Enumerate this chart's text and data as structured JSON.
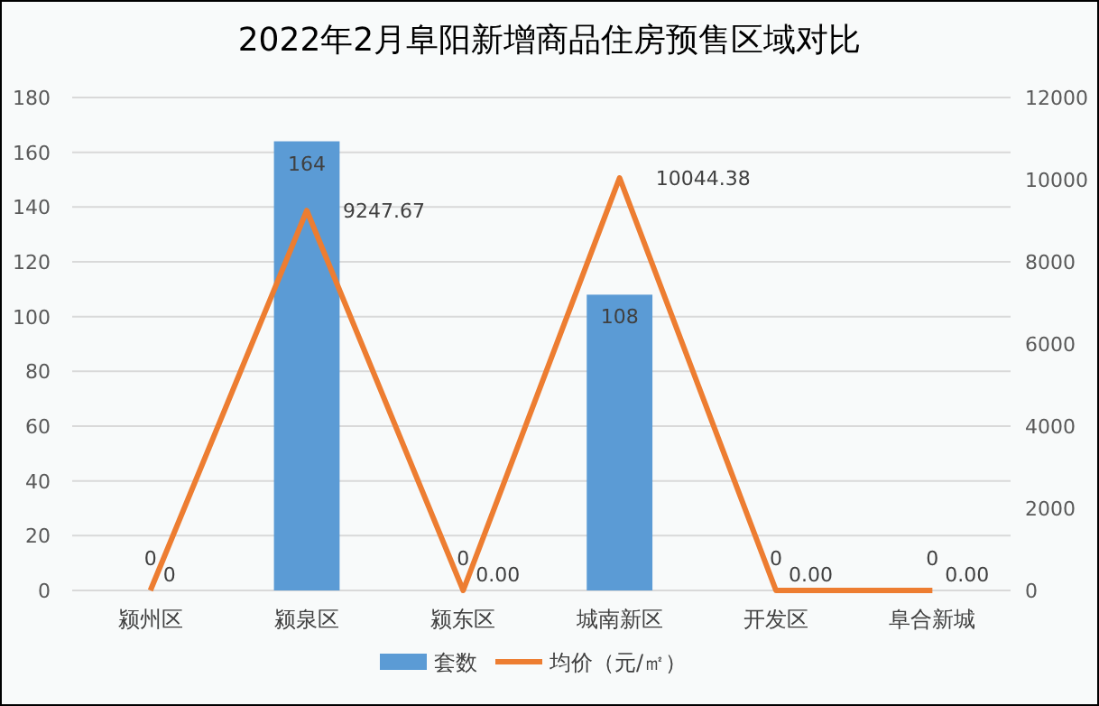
{
  "chart_data": {
    "type": "bar",
    "title": "2022年2月阜阳新增商品住房预售区域对比",
    "categories": [
      "颍州区",
      "颍泉区",
      "颍东区",
      "城南新区",
      "开发区",
      "阜合新城"
    ],
    "series": [
      {
        "name": "套数",
        "color": "#5b9bd5",
        "values": [
          0,
          164,
          0,
          108,
          0,
          0
        ],
        "value_labels": [
          "0",
          "164",
          "0",
          "108",
          "0",
          "0"
        ]
      },
      {
        "name": "均价（元/㎡）",
        "type": "line",
        "axis": "y2",
        "color": "#ed7d31",
        "values": [
          0,
          9247.67,
          0,
          10044.38,
          0,
          0
        ],
        "value_labels": [
          "0",
          "9247.67",
          "0.00",
          "10044.38",
          "0.00",
          "0.00"
        ]
      }
    ],
    "ylim": [
      0,
      180
    ],
    "yticks": [
      0,
      20,
      40,
      60,
      80,
      100,
      120,
      140,
      160,
      180
    ],
    "y2lim": [
      0,
      12000
    ],
    "y2ticks": [
      0,
      2000,
      4000,
      6000,
      8000,
      10000,
      12000
    ],
    "grid": "y",
    "legend": "bottom",
    "marker": "none",
    "line_style": "solid"
  }
}
